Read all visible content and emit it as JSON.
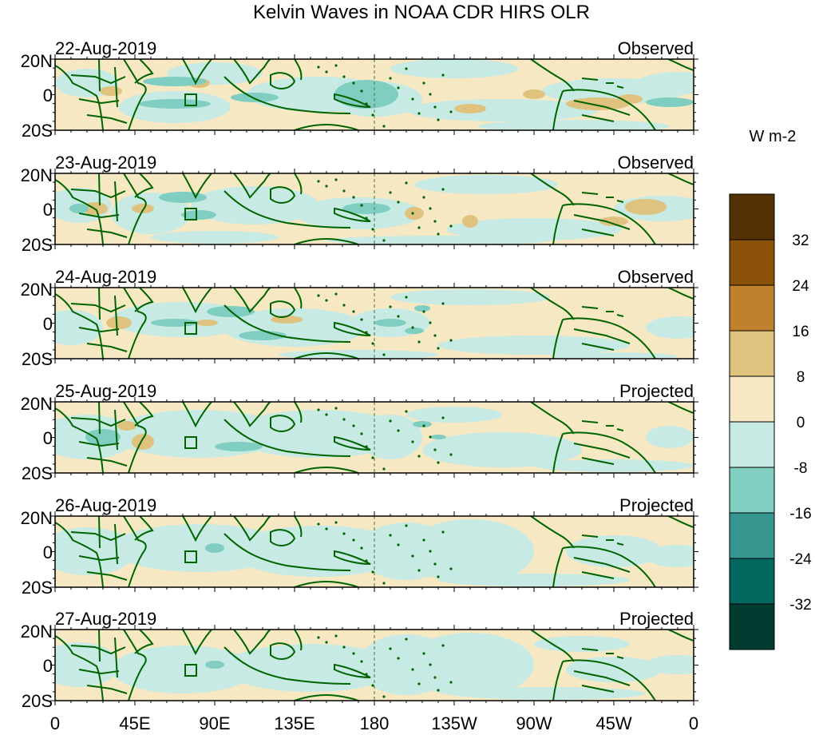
{
  "title": "Kelvin Waves in NOAA CDR HIRS OLR",
  "units": "W m-2",
  "panels": [
    {
      "date": "22-Aug-2019",
      "status": "Observed"
    },
    {
      "date": "23-Aug-2019",
      "status": "Observed"
    },
    {
      "date": "24-Aug-2019",
      "status": "Observed"
    },
    {
      "date": "25-Aug-2019",
      "status": "Projected"
    },
    {
      "date": "26-Aug-2019",
      "status": "Projected"
    },
    {
      "date": "27-Aug-2019",
      "status": "Projected"
    }
  ],
  "lat_labels": [
    "20N",
    "0",
    "20S"
  ],
  "lon_labels": [
    "0",
    "45E",
    "90E",
    "135E",
    "180",
    "135W",
    "90W",
    "45W",
    "0"
  ],
  "colorbar": {
    "labels": [
      "32",
      "24",
      "16",
      "8",
      "0",
      "-8",
      "-16",
      "-24",
      "-32"
    ],
    "colors": [
      "#543005",
      "#8c5109",
      "#bf812c",
      "#dfc27d",
      "#f6e8c3",
      "#c7eae5",
      "#80cdc1",
      "#35978f",
      "#01665e",
      "#003c30"
    ]
  },
  "colors": {
    "coast": "#006400",
    "dateline": "#5a8a5a"
  }
}
